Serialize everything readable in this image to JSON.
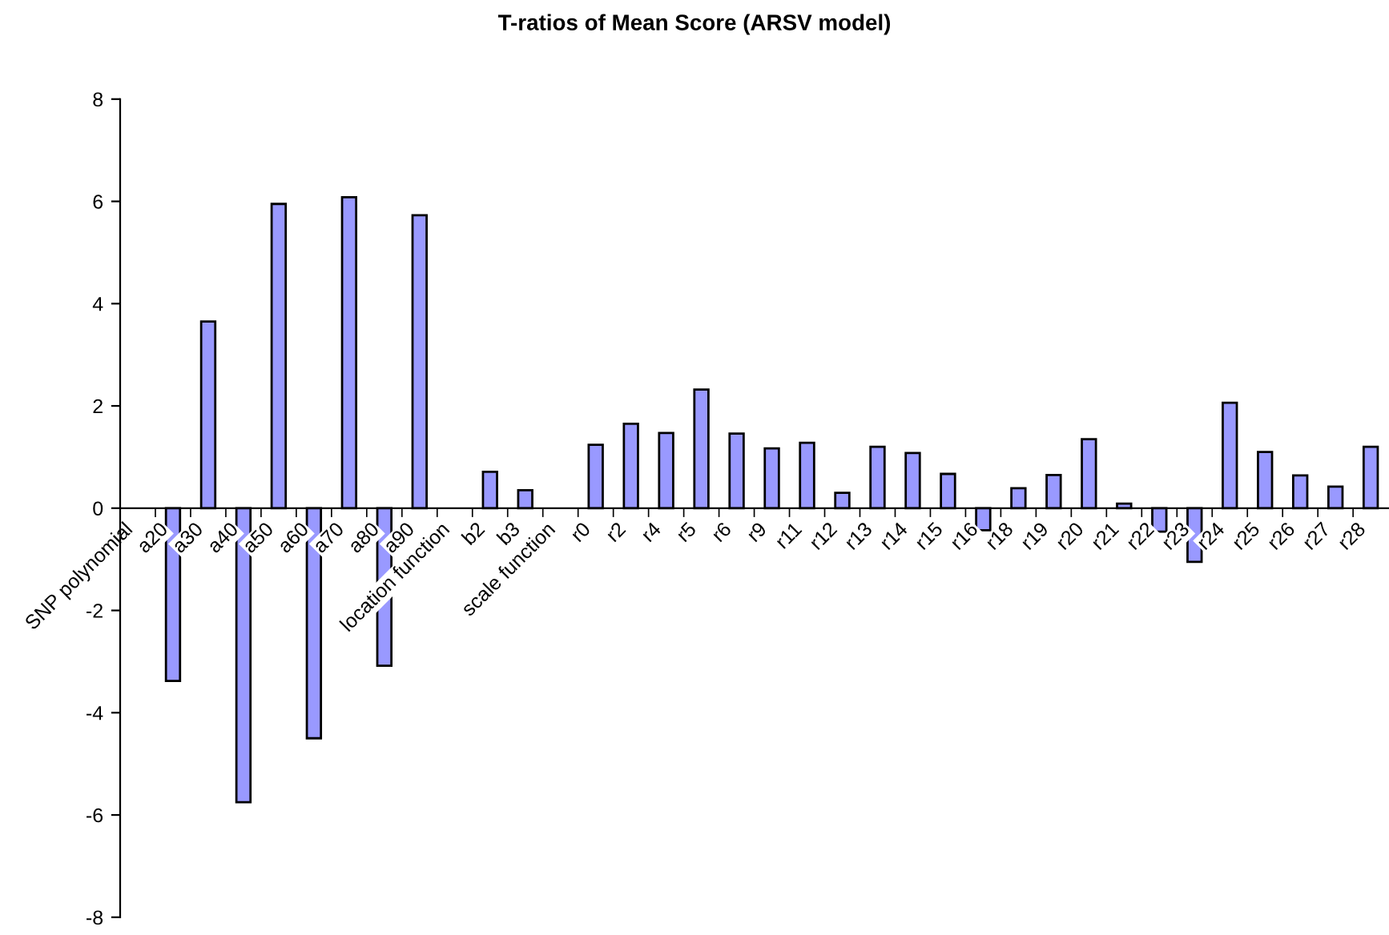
{
  "chart_data": {
    "type": "bar",
    "title": "T-ratios of Mean Score (ARSV model)",
    "categories": [
      "SNP polynomial",
      "a20",
      "a30",
      "a40",
      "a50",
      "a60",
      "a70",
      "a80",
      "a90",
      "location function",
      "b2",
      "b3",
      "scale function",
      "r0",
      "r2",
      "r4",
      "r5",
      "r6",
      "r9",
      "r11",
      "r12",
      "r13",
      "r14",
      "r15",
      "r16",
      "r18",
      "r19",
      "r20",
      "r21",
      "r22",
      "r23",
      "r24",
      "r25",
      "r26",
      "r27",
      "r28"
    ],
    "values": [
      null,
      -3.38,
      3.65,
      -5.75,
      5.95,
      -4.5,
      6.08,
      -3.08,
      5.73,
      null,
      0.71,
      0.35,
      null,
      1.24,
      1.65,
      1.47,
      2.32,
      1.46,
      1.17,
      1.28,
      0.3,
      1.2,
      1.08,
      0.67,
      -0.43,
      0.39,
      0.65,
      1.35,
      0.09,
      -0.46,
      -1.05,
      2.06,
      1.1,
      0.64,
      0.42,
      1.2
    ],
    "color": "#9999ff",
    "ylim": [
      -8,
      8
    ],
    "yticks": [
      -8,
      -6,
      -4,
      -2,
      0,
      2,
      4,
      6,
      8
    ],
    "grid": false,
    "legend": false
  }
}
